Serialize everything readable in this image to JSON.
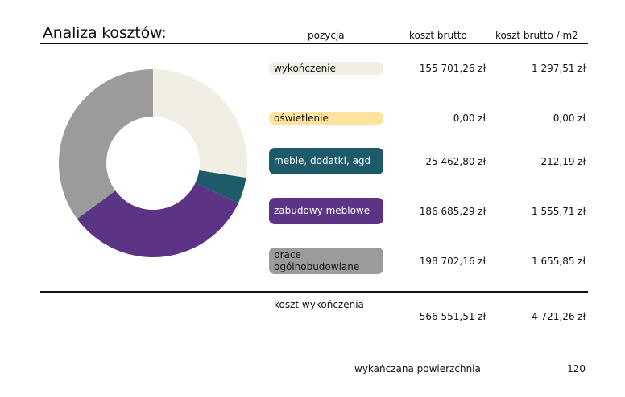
{
  "title": "Analiza kosztów:",
  "headers": {
    "pozycja": "pozycja",
    "brutto": "koszt brutto",
    "brutto_m2": "koszt brutto / m2"
  },
  "rows": [
    {
      "label": "wykończenie",
      "brutto": "155 701,26 zł",
      "m2": "1 297,51 zł",
      "color": "#f1eee3",
      "text_color": "#111111"
    },
    {
      "label": "oświetlenie",
      "brutto": "0,00 zł",
      "m2": "0,00 zł",
      "color": "#fde39c",
      "text_color": "#111111"
    },
    {
      "label": "meble, dodatki, agd",
      "brutto": "25 462,80 zł",
      "m2": "212,19 zł",
      "color": "#1d5a6a",
      "text_color": "#ffffff"
    },
    {
      "label": "zabudowy meblowe",
      "brutto": "186 685,29 zł",
      "m2": "1 555,71 zł",
      "color": "#5c3486",
      "text_color": "#ffffff"
    },
    {
      "label": "prace ogólnobudowlane",
      "brutto": "198 702,16 zł",
      "m2": "1 655,85 zł",
      "color": "#9b9b9b",
      "text_color": "#111111"
    }
  ],
  "total": {
    "label": "koszt wykończenia",
    "brutto": "566 551,51 zł",
    "m2": "4 721,26 zł"
  },
  "area": {
    "label": "wykańczana powierzchnia",
    "value": "120"
  },
  "chart_data": {
    "type": "pie",
    "categories": [
      "wykończenie",
      "oświetlenie",
      "meble, dodatki, agd",
      "zabudowy meblowe",
      "prace ogólnobudowlane"
    ],
    "values": [
      155701.26,
      0.0,
      25462.8,
      186685.29,
      198702.16
    ],
    "colors": [
      "#f1eee3",
      "#fde39c",
      "#1d5a6a",
      "#5c3486",
      "#9b9b9b"
    ],
    "donut": true
  }
}
